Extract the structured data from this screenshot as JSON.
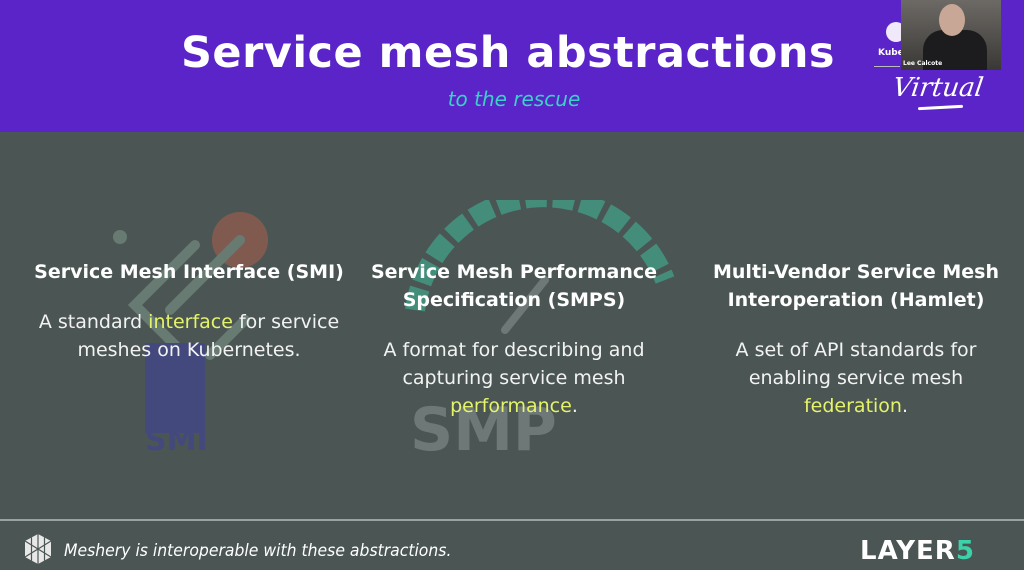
{
  "header": {
    "title": "Service mesh abstractions",
    "subtitle": "to the rescue"
  },
  "webcam": {
    "name": "Lee Calcote"
  },
  "event": {
    "brand_fragment": "Kuber",
    "tagline": "Virtual"
  },
  "columns": [
    {
      "title": "Service Mesh Interface (SMI)",
      "desc_before": "A standard ",
      "desc_highlight": "interface",
      "desc_after": " for service meshes on Kubernetes.",
      "bg_logo": "SMI"
    },
    {
      "title": "Service Mesh Performance Specification (SMPS)",
      "desc_before": "A format for describing and capturing service mesh ",
      "desc_highlight": "performance",
      "desc_after": ".",
      "bg_logo": "SMP"
    },
    {
      "title": "Multi-Vendor Service Mesh Interoperation (Hamlet)",
      "desc_before": "A set of API standards for enabling service mesh ",
      "desc_highlight": "federation",
      "desc_after": "."
    }
  ],
  "footer": {
    "text": "Meshery is interoperable with these abstractions.",
    "logo_main": "LAYER",
    "logo_five": "5"
  },
  "colors": {
    "header": "#5a24c8",
    "body": "#4b5654",
    "accent_teal": "#3bd1c9",
    "highlight": "#e5f36a"
  }
}
